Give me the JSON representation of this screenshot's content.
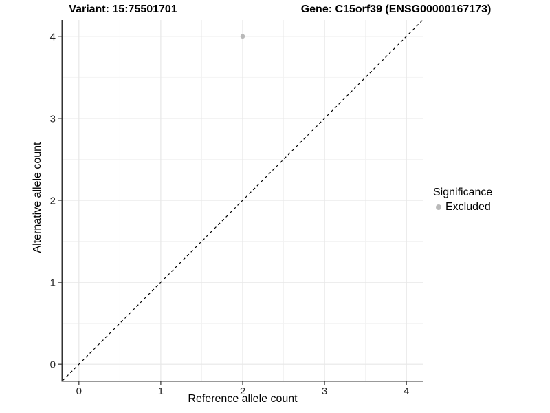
{
  "titles": {
    "variant": "Variant: 15:75501701",
    "gene": "Gene: C15orf39 (ENSG00000167173)"
  },
  "chart_data": {
    "type": "scatter",
    "title": "Variant: 15:75501701    Gene: C15orf39 (ENSG00000167173)",
    "xlabel": "Reference allele count",
    "ylabel": "Alternative allele count",
    "xlim": [
      -0.2,
      4.2
    ],
    "ylim": [
      -0.2,
      4.2
    ],
    "x_ticks": [
      0,
      1,
      2,
      3,
      4
    ],
    "y_ticks": [
      0,
      1,
      2,
      3,
      4
    ],
    "x_minor_ticks": [
      0.5,
      1.5,
      2.5,
      3.5
    ],
    "y_minor_ticks": [
      0.5,
      1.5,
      2.5,
      3.5
    ],
    "grid": true,
    "series": [
      {
        "name": "Excluded",
        "color": "#b9b9b9",
        "points": [
          {
            "x": 2,
            "y": 4
          }
        ]
      }
    ],
    "reference_line": {
      "type": "identity",
      "slope": 1,
      "intercept": 0,
      "style": "dashed",
      "color": "#000000"
    },
    "legend": {
      "title": "Significance",
      "position": "right",
      "entries": [
        {
          "label": "Excluded",
          "color": "#b9b9b9"
        }
      ]
    }
  },
  "colors": {
    "background": "#ffffff",
    "grid_major": "#e7e7e7",
    "grid_minor": "#f2f2f2",
    "axis_line": "#333333",
    "tick_label": "#262626",
    "point": "#b9b9b9"
  }
}
